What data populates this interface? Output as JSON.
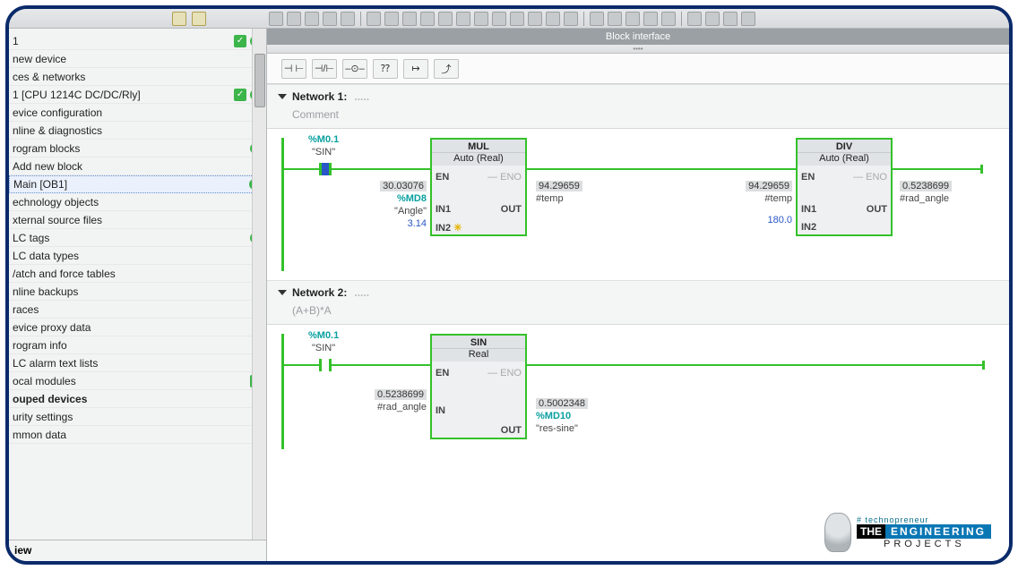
{
  "header": {
    "block_interface": "Block interface"
  },
  "sidebar": {
    "items": [
      {
        "label": "1",
        "chk": true,
        "dot": true
      },
      {
        "label": "new device"
      },
      {
        "label": "ces & networks"
      },
      {
        "label": "1 [CPU 1214C DC/DC/Rly]",
        "chk": true,
        "dot": true
      },
      {
        "label": "evice configuration"
      },
      {
        "label": "nline & diagnostics"
      },
      {
        "label": "rogram blocks",
        "dot": true
      },
      {
        "label": "  Add new block"
      },
      {
        "label": "  Main [OB1]",
        "dot": true,
        "sel": true
      },
      {
        "label": "echnology objects"
      },
      {
        "label": "xternal source files"
      },
      {
        "label": "LC tags",
        "dot": true
      },
      {
        "label": "LC data types"
      },
      {
        "label": "/atch and force tables"
      },
      {
        "label": "nline backups"
      },
      {
        "label": "races"
      },
      {
        "label": "evice proxy data"
      },
      {
        "label": "rogram info"
      },
      {
        "label": "LC alarm text lists"
      },
      {
        "label": "ocal modules",
        "chk": true
      },
      {
        "label": "ouped devices",
        "bold": true
      },
      {
        "label": "urity settings"
      },
      {
        "label": "mmon data"
      }
    ],
    "bottom": "iew"
  },
  "ladtoolbar": [
    "⊣ ⊢",
    "⊣/⊢",
    "–⊙–",
    "⁇",
    "↦",
    "⤴"
  ],
  "networks": [
    {
      "title": "Network 1:",
      "comment": "Comment",
      "contact": {
        "addr": "%M0.1",
        "name": "\"SIN\"",
        "closed": true
      },
      "blocks": [
        {
          "name": "MUL",
          "sub": "Auto (Real)",
          "in1": {
            "val": "30.03076",
            "addr": "%MD8",
            "name": "\"Angle\""
          },
          "in2": {
            "lit": "3.14",
            "spark": true
          },
          "out": {
            "val": "94.29659",
            "name": "#temp"
          }
        },
        {
          "name": "DIV",
          "sub": "Auto (Real)",
          "in1": {
            "val": "94.29659",
            "name": "#temp"
          },
          "in2": {
            "lit": "180.0"
          },
          "out": {
            "val": "0.5238699",
            "name": "#rad_angle"
          }
        }
      ]
    },
    {
      "title": "Network 2:",
      "comment": "(A+B)*A",
      "contact": {
        "addr": "%M0.1",
        "name": "\"SIN\"",
        "closed": false
      },
      "blocks": [
        {
          "name": "SIN",
          "sub": "Real",
          "in": {
            "val": "0.5238699",
            "name": "#rad_angle"
          },
          "out": {
            "val": "0.5002348",
            "addr": "%MD10",
            "name": "\"res-sine\""
          }
        }
      ]
    }
  ],
  "logo": {
    "tag": "# technopreneur",
    "the": "THE",
    "eng": "ENGINEERING",
    "proj": "PROJECTS"
  },
  "colors": {
    "wire_on": "#34c12a",
    "accent": "#0aa0a0",
    "frame": "#0a2a6a"
  }
}
